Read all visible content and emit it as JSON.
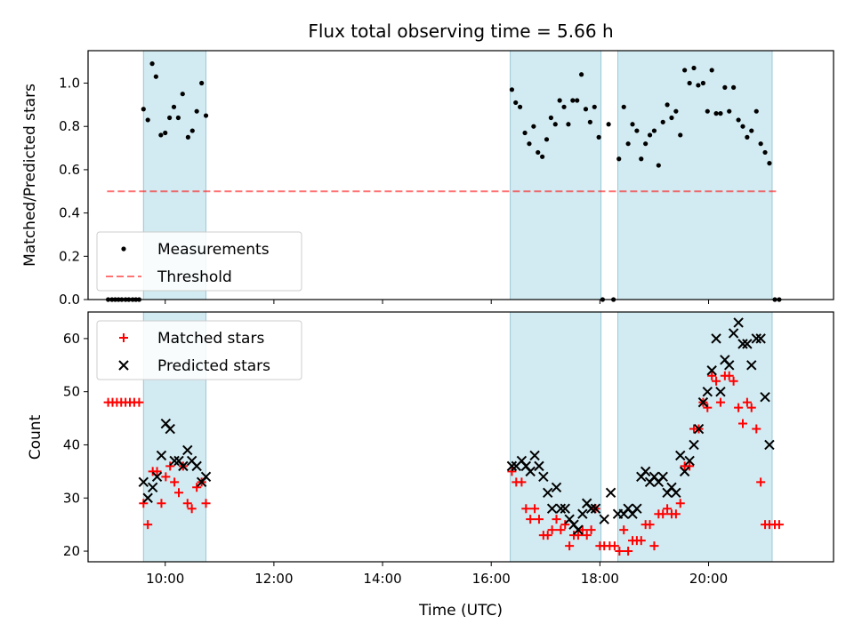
{
  "figure": {
    "title": "Flux total observing time = 5.66 h",
    "xlabel": "Time (UTC)"
  },
  "colors": {
    "shade": "#add8e6",
    "threshold": "#ff0000",
    "measurement": "#000000",
    "matched": "#ff0000",
    "predicted": "#000000"
  },
  "chart_data": [
    {
      "type": "scatter",
      "ylabel": "Matched/Predicted stars",
      "xlim": [
        8.58,
        22.3
      ],
      "ylim": [
        0,
        1.15
      ],
      "x_unit": "hours UTC",
      "xticks": [
        {
          "value": 10,
          "label": "10:00"
        },
        {
          "value": 12,
          "label": "12:00"
        },
        {
          "value": 14,
          "label": "14:00"
        },
        {
          "value": 16,
          "label": "16:00"
        },
        {
          "value": 18,
          "label": "18:00"
        },
        {
          "value": 20,
          "label": "20:00"
        }
      ],
      "yticks": [
        {
          "value": 0.0,
          "label": "0.0"
        },
        {
          "value": 0.2,
          "label": "0.2"
        },
        {
          "value": 0.4,
          "label": "0.4"
        },
        {
          "value": 0.6,
          "label": "0.6"
        },
        {
          "value": 0.8,
          "label": "0.8"
        },
        {
          "value": 1.0,
          "label": "1.0"
        }
      ],
      "shaded_spans": [
        [
          9.6,
          10.75
        ],
        [
          16.35,
          18.02
        ],
        [
          18.33,
          21.17
        ]
      ],
      "threshold": {
        "name": "Threshold",
        "y": 0.5,
        "x": [
          8.93,
          21.27
        ]
      },
      "legend": {
        "position": "lower-left",
        "entries": [
          "Measurements",
          "Threshold"
        ]
      },
      "series": [
        {
          "name": "Measurements",
          "marker": "dot",
          "points": [
            [
              8.95,
              0
            ],
            [
              9.02,
              0
            ],
            [
              9.08,
              0
            ],
            [
              9.14,
              0
            ],
            [
              9.2,
              0
            ],
            [
              9.27,
              0
            ],
            [
              9.33,
              0
            ],
            [
              9.4,
              0
            ],
            [
              9.46,
              0
            ],
            [
              9.52,
              0
            ],
            [
              9.6,
              0.88
            ],
            [
              9.68,
              0.83
            ],
            [
              9.76,
              1.09
            ],
            [
              9.83,
              1.03
            ],
            [
              9.92,
              0.76
            ],
            [
              10.0,
              0.77
            ],
            [
              10.08,
              0.84
            ],
            [
              10.16,
              0.89
            ],
            [
              10.24,
              0.84
            ],
            [
              10.32,
              0.95
            ],
            [
              10.42,
              0.75
            ],
            [
              10.5,
              0.78
            ],
            [
              10.58,
              0.87
            ],
            [
              10.67,
              1.0
            ],
            [
              10.75,
              0.85
            ],
            [
              16.38,
              0.97
            ],
            [
              16.45,
              0.91
            ],
            [
              16.53,
              0.89
            ],
            [
              16.62,
              0.77
            ],
            [
              16.7,
              0.72
            ],
            [
              16.78,
              0.8
            ],
            [
              16.86,
              0.68
            ],
            [
              16.94,
              0.66
            ],
            [
              17.02,
              0.74
            ],
            [
              17.1,
              0.84
            ],
            [
              17.18,
              0.81
            ],
            [
              17.26,
              0.92
            ],
            [
              17.34,
              0.89
            ],
            [
              17.42,
              0.81
            ],
            [
              17.5,
              0.92
            ],
            [
              17.58,
              0.92
            ],
            [
              17.66,
              1.04
            ],
            [
              17.74,
              0.88
            ],
            [
              17.82,
              0.82
            ],
            [
              17.9,
              0.89
            ],
            [
              17.98,
              0.75
            ],
            [
              18.05,
              0
            ],
            [
              18.16,
              0.81
            ],
            [
              18.25,
              0
            ],
            [
              18.35,
              0.65
            ],
            [
              18.44,
              0.89
            ],
            [
              18.52,
              0.72
            ],
            [
              18.6,
              0.81
            ],
            [
              18.68,
              0.78
            ],
            [
              18.76,
              0.65
            ],
            [
              18.84,
              0.72
            ],
            [
              18.92,
              0.76
            ],
            [
              19.0,
              0.78
            ],
            [
              19.08,
              0.62
            ],
            [
              19.16,
              0.82
            ],
            [
              19.24,
              0.9
            ],
            [
              19.32,
              0.84
            ],
            [
              19.4,
              0.87
            ],
            [
              19.48,
              0.76
            ],
            [
              19.56,
              1.06
            ],
            [
              19.65,
              1.0
            ],
            [
              19.73,
              1.07
            ],
            [
              19.81,
              0.99
            ],
            [
              19.9,
              1.0
            ],
            [
              19.98,
              0.87
            ],
            [
              20.06,
              1.06
            ],
            [
              20.14,
              0.86
            ],
            [
              20.22,
              0.86
            ],
            [
              20.3,
              0.98
            ],
            [
              20.38,
              0.87
            ],
            [
              20.46,
              0.98
            ],
            [
              20.55,
              0.83
            ],
            [
              20.63,
              0.8
            ],
            [
              20.71,
              0.75
            ],
            [
              20.79,
              0.78
            ],
            [
              20.88,
              0.87
            ],
            [
              20.96,
              0.72
            ],
            [
              21.04,
              0.68
            ],
            [
              21.12,
              0.63
            ],
            [
              21.22,
              0
            ],
            [
              21.3,
              0
            ]
          ]
        }
      ]
    },
    {
      "type": "scatter",
      "ylabel": "Count",
      "xlim": [
        8.58,
        22.3
      ],
      "ylim": [
        18,
        65
      ],
      "x_unit": "hours UTC",
      "yticks": [
        {
          "value": 20,
          "label": "20"
        },
        {
          "value": 30,
          "label": "30"
        },
        {
          "value": 40,
          "label": "40"
        },
        {
          "value": 50,
          "label": "50"
        },
        {
          "value": 60,
          "label": "60"
        }
      ],
      "shaded_spans": [
        [
          9.6,
          10.75
        ],
        [
          16.35,
          18.02
        ],
        [
          18.33,
          21.17
        ]
      ],
      "legend": {
        "position": "upper-left",
        "entries": [
          "Matched stars",
          "Predicted stars"
        ]
      },
      "series": [
        {
          "name": "Matched stars",
          "marker": "plus",
          "points": [
            [
              8.95,
              48
            ],
            [
              9.03,
              48
            ],
            [
              9.11,
              48
            ],
            [
              9.19,
              48
            ],
            [
              9.27,
              48
            ],
            [
              9.35,
              48
            ],
            [
              9.43,
              48
            ],
            [
              9.52,
              48
            ],
            [
              9.6,
              29
            ],
            [
              9.68,
              25
            ],
            [
              9.77,
              35
            ],
            [
              9.85,
              35
            ],
            [
              9.93,
              29
            ],
            [
              10.01,
              34
            ],
            [
              10.09,
              36
            ],
            [
              10.17,
              33
            ],
            [
              10.25,
              31
            ],
            [
              10.33,
              36
            ],
            [
              10.41,
              29
            ],
            [
              10.49,
              28
            ],
            [
              10.58,
              32
            ],
            [
              10.67,
              33
            ],
            [
              10.75,
              29
            ],
            [
              16.38,
              35
            ],
            [
              16.46,
              33
            ],
            [
              16.56,
              33
            ],
            [
              16.64,
              28
            ],
            [
              16.72,
              26
            ],
            [
              16.8,
              28
            ],
            [
              16.88,
              26
            ],
            [
              16.96,
              23
            ],
            [
              17.04,
              23
            ],
            [
              17.12,
              24
            ],
            [
              17.2,
              26
            ],
            [
              17.28,
              24
            ],
            [
              17.36,
              25
            ],
            [
              17.44,
              21
            ],
            [
              17.52,
              23
            ],
            [
              17.6,
              23
            ],
            [
              17.68,
              24
            ],
            [
              17.76,
              23
            ],
            [
              17.84,
              24
            ],
            [
              17.92,
              28
            ],
            [
              18.0,
              21
            ],
            [
              18.08,
              21
            ],
            [
              18.18,
              21
            ],
            [
              18.27,
              21
            ],
            [
              18.36,
              20
            ],
            [
              18.44,
              24
            ],
            [
              18.52,
              20
            ],
            [
              18.6,
              22
            ],
            [
              18.68,
              22
            ],
            [
              18.76,
              22
            ],
            [
              18.84,
              25
            ],
            [
              18.92,
              25
            ],
            [
              19.0,
              21
            ],
            [
              19.08,
              27
            ],
            [
              19.16,
              27
            ],
            [
              19.24,
              28
            ],
            [
              19.32,
              27
            ],
            [
              19.4,
              27
            ],
            [
              19.48,
              29
            ],
            [
              19.56,
              36
            ],
            [
              19.65,
              36
            ],
            [
              19.73,
              43
            ],
            [
              19.82,
              43
            ],
            [
              19.9,
              48
            ],
            [
              19.98,
              47
            ],
            [
              20.06,
              53
            ],
            [
              20.14,
              52
            ],
            [
              20.22,
              48
            ],
            [
              20.3,
              53
            ],
            [
              20.38,
              53
            ],
            [
              20.46,
              52
            ],
            [
              20.55,
              47
            ],
            [
              20.63,
              44
            ],
            [
              20.71,
              48
            ],
            [
              20.79,
              47
            ],
            [
              20.88,
              43
            ],
            [
              20.96,
              33
            ],
            [
              21.04,
              25
            ],
            [
              21.12,
              25
            ],
            [
              21.22,
              25
            ],
            [
              21.3,
              25
            ]
          ]
        },
        {
          "name": "Predicted stars",
          "marker": "x",
          "points": [
            [
              9.6,
              33
            ],
            [
              9.68,
              30
            ],
            [
              9.77,
              32
            ],
            [
              9.85,
              34
            ],
            [
              9.93,
              38
            ],
            [
              10.01,
              44
            ],
            [
              10.09,
              43
            ],
            [
              10.17,
              37
            ],
            [
              10.25,
              37
            ],
            [
              10.33,
              36
            ],
            [
              10.41,
              39
            ],
            [
              10.49,
              37
            ],
            [
              10.58,
              36
            ],
            [
              10.67,
              33
            ],
            [
              10.75,
              34
            ],
            [
              16.38,
              36
            ],
            [
              16.46,
              36
            ],
            [
              16.56,
              37
            ],
            [
              16.64,
              36
            ],
            [
              16.72,
              35
            ],
            [
              16.8,
              38
            ],
            [
              16.88,
              36
            ],
            [
              16.96,
              34
            ],
            [
              17.04,
              31
            ],
            [
              17.12,
              28
            ],
            [
              17.2,
              32
            ],
            [
              17.28,
              28
            ],
            [
              17.36,
              28
            ],
            [
              17.44,
              26
            ],
            [
              17.52,
              25
            ],
            [
              17.6,
              24
            ],
            [
              17.68,
              27
            ],
            [
              17.76,
              29
            ],
            [
              17.84,
              28
            ],
            [
              17.92,
              28
            ],
            [
              18.08,
              26
            ],
            [
              18.2,
              31
            ],
            [
              18.33,
              27
            ],
            [
              18.44,
              27
            ],
            [
              18.52,
              28
            ],
            [
              18.6,
              27
            ],
            [
              18.68,
              28
            ],
            [
              18.76,
              34
            ],
            [
              18.84,
              35
            ],
            [
              18.92,
              33
            ],
            [
              19.0,
              34
            ],
            [
              19.08,
              33
            ],
            [
              19.16,
              34
            ],
            [
              19.24,
              31
            ],
            [
              19.32,
              32
            ],
            [
              19.4,
              31
            ],
            [
              19.48,
              38
            ],
            [
              19.56,
              35
            ],
            [
              19.65,
              37
            ],
            [
              19.73,
              40
            ],
            [
              19.82,
              43
            ],
            [
              19.9,
              48
            ],
            [
              19.98,
              50
            ],
            [
              20.06,
              54
            ],
            [
              20.14,
              60
            ],
            [
              20.22,
              50
            ],
            [
              20.3,
              56
            ],
            [
              20.38,
              55
            ],
            [
              20.46,
              61
            ],
            [
              20.55,
              63
            ],
            [
              20.63,
              59
            ],
            [
              20.71,
              59
            ],
            [
              20.79,
              55
            ],
            [
              20.88,
              60
            ],
            [
              20.96,
              60
            ],
            [
              21.04,
              49
            ],
            [
              21.12,
              40
            ]
          ]
        }
      ]
    }
  ]
}
